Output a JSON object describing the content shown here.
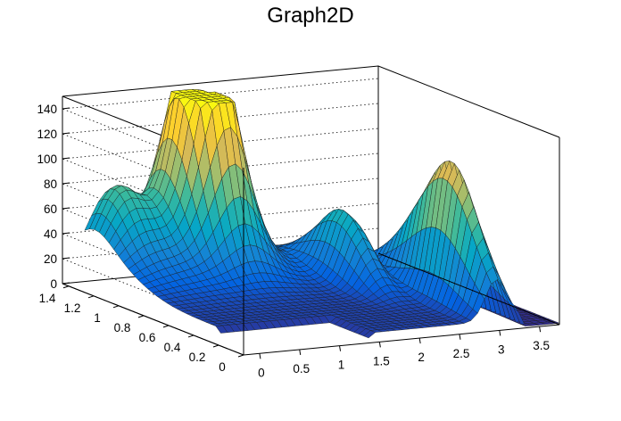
{
  "chart_data": {
    "type": "surface",
    "title": "Graph2D",
    "xlabel": "",
    "ylabel": "",
    "zlabel": "",
    "xlim": [
      -0.2,
      3.75
    ],
    "ylim": [
      0,
      1.45
    ],
    "zlim": [
      0,
      150
    ],
    "x_ticks": [
      "0",
      "0.5",
      "1",
      "1.5",
      "2",
      "2.5",
      "3",
      "3.5"
    ],
    "y_ticks": [
      "0",
      "0.2",
      "0.4",
      "0.6",
      "0.8",
      "1",
      "1.2",
      "1.4"
    ],
    "z_ticks": [
      "0",
      "20",
      "40",
      "60",
      "80",
      "100",
      "120",
      "140"
    ],
    "grid": true,
    "colormap": [
      "#352a87",
      "#0363e1",
      "#1485d4",
      "#06a7c6",
      "#38b99e",
      "#92bf73",
      "#d9ba56",
      "#fcce2e",
      "#f9fb0e"
    ],
    "approximate_peaks": [
      {
        "x": 1.3,
        "y": 1.2,
        "z": 150
      },
      {
        "x": 1.1,
        "y": 1.3,
        "z": 110
      },
      {
        "x": 2.4,
        "y": 0.85,
        "z": 80
      },
      {
        "x": 3.0,
        "y": 0.35,
        "z": 82
      },
      {
        "x": 0.3,
        "y": 1.35,
        "z": 75
      }
    ]
  }
}
